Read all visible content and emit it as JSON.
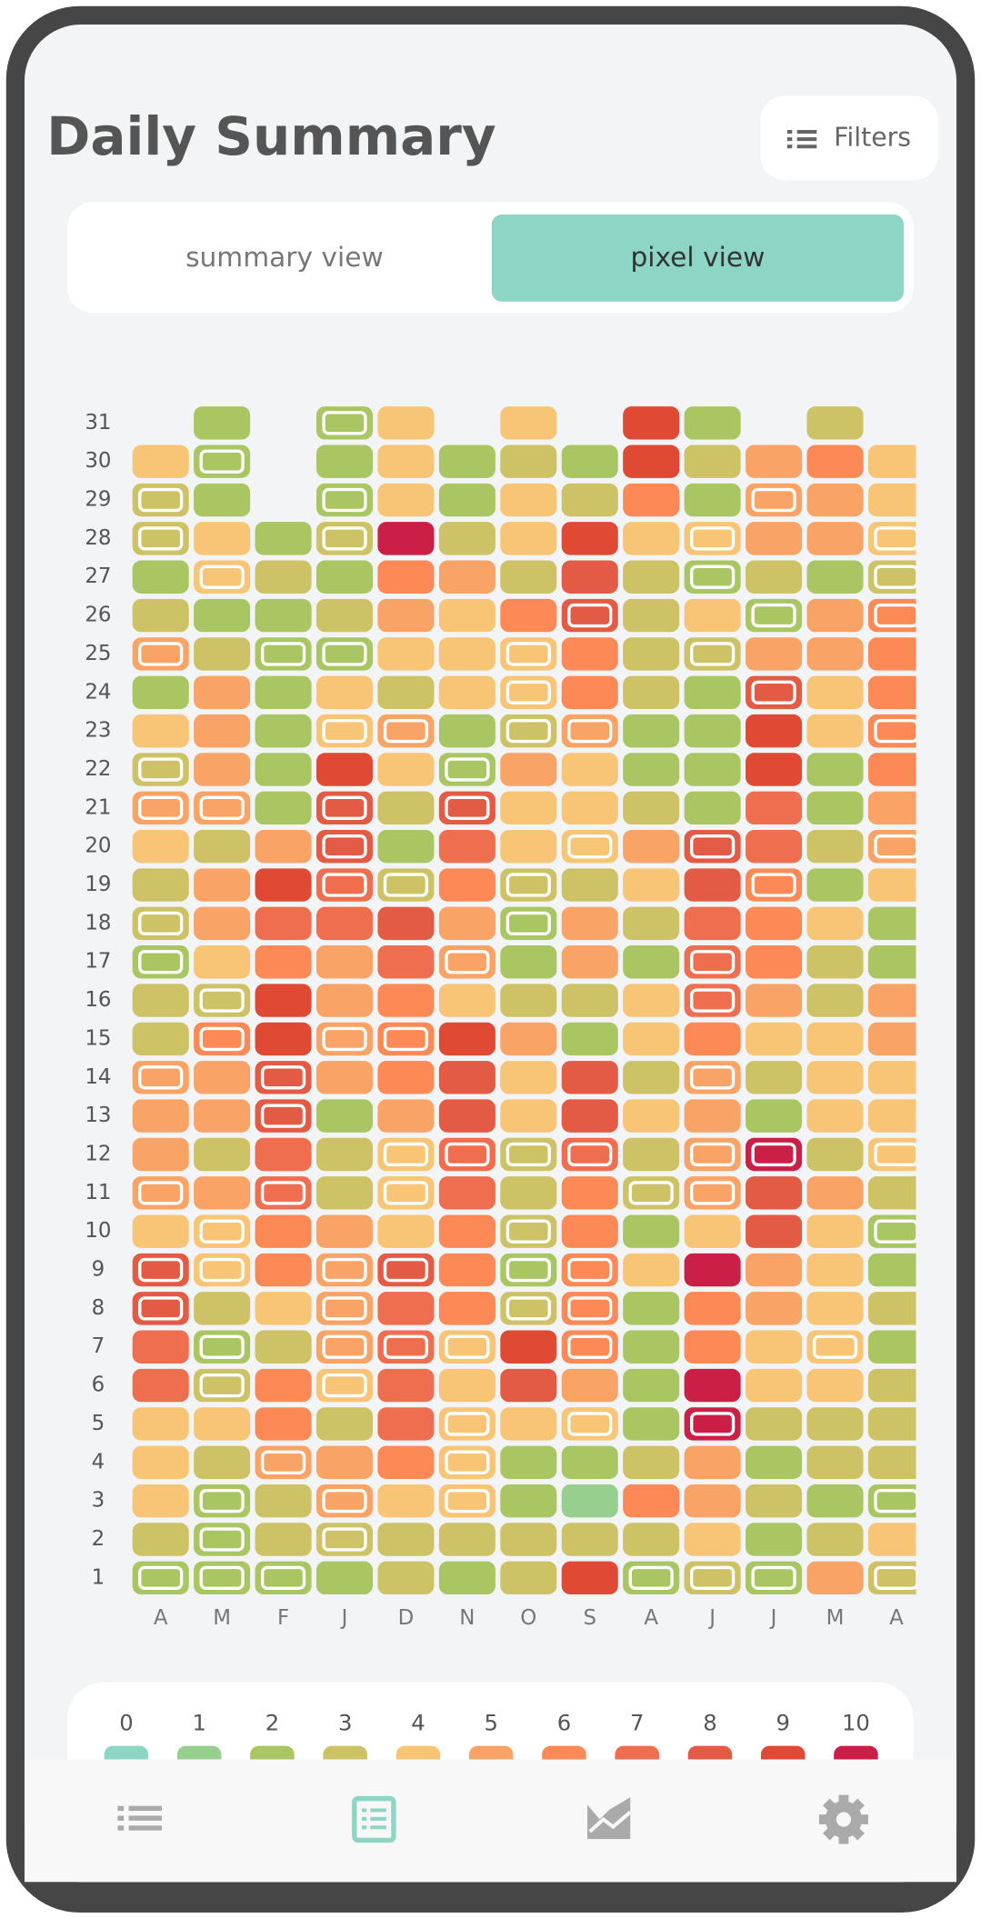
{
  "header": {
    "title": "Daily Summary",
    "filters": "Filters"
  },
  "tabs": [
    "summary view",
    "pixel view"
  ],
  "active_tab": 1,
  "pixel_grid": {
    "months": [
      "A",
      "M",
      "F",
      "J",
      "D",
      "N",
      "O",
      "S",
      "A",
      "J",
      "J",
      "M",
      "A"
    ],
    "days": [
      31,
      30,
      29,
      28,
      27,
      26,
      25,
      24,
      23,
      22,
      21,
      20,
      19,
      18,
      17,
      16,
      15,
      14,
      13,
      12,
      11,
      10,
      9,
      8,
      7,
      6,
      5,
      4,
      3,
      2,
      1
    ],
    "values": [
      [
        null,
        2,
        null,
        2,
        4,
        null,
        4,
        null,
        9,
        2,
        null,
        3,
        null
      ],
      [
        4,
        2,
        null,
        2,
        4,
        2,
        3,
        2,
        9,
        3,
        5,
        6,
        4
      ],
      [
        3,
        2,
        null,
        2,
        4,
        2,
        4,
        3,
        6,
        2,
        5,
        5,
        4
      ],
      [
        3,
        4,
        2,
        3,
        10,
        3,
        4,
        9,
        4,
        4,
        5,
        5,
        4
      ],
      [
        2,
        4,
        3,
        2,
        6,
        5,
        3,
        8,
        3,
        2,
        3,
        2,
        3
      ],
      [
        3,
        2,
        2,
        3,
        5,
        4,
        6,
        8,
        3,
        4,
        2,
        5,
        6
      ],
      [
        5,
        3,
        2,
        2,
        4,
        4,
        4,
        6,
        3,
        3,
        5,
        5,
        6
      ],
      [
        2,
        5,
        2,
        4,
        3,
        4,
        4,
        6,
        3,
        2,
        8,
        4,
        6
      ],
      [
        4,
        5,
        2,
        4,
        5,
        2,
        3,
        5,
        2,
        2,
        9,
        4,
        6
      ],
      [
        3,
        5,
        2,
        9,
        4,
        2,
        5,
        4,
        2,
        2,
        9,
        2,
        6
      ],
      [
        5,
        5,
        2,
        8,
        3,
        8,
        4,
        4,
        3,
        2,
        7,
        2,
        5
      ],
      [
        4,
        3,
        5,
        8,
        2,
        7,
        4,
        4,
        5,
        8,
        7,
        3,
        5
      ],
      [
        3,
        5,
        9,
        7,
        3,
        6,
        3,
        3,
        4,
        8,
        6,
        2,
        4
      ],
      [
        3,
        5,
        7,
        7,
        8,
        5,
        2,
        5,
        3,
        7,
        6,
        4,
        2
      ],
      [
        2,
        4,
        6,
        5,
        7,
        5,
        2,
        5,
        2,
        7,
        6,
        3,
        2
      ],
      [
        3,
        3,
        9,
        5,
        6,
        4,
        3,
        3,
        4,
        7,
        5,
        3,
        5
      ],
      [
        3,
        6,
        9,
        5,
        6,
        9,
        5,
        2,
        4,
        6,
        4,
        4,
        5
      ],
      [
        5,
        5,
        8,
        5,
        6,
        8,
        4,
        8,
        3,
        5,
        3,
        4,
        4
      ],
      [
        5,
        5,
        8,
        2,
        5,
        8,
        4,
        8,
        4,
        5,
        2,
        4,
        4
      ],
      [
        5,
        3,
        7,
        3,
        4,
        7,
        3,
        7,
        3,
        5,
        10,
        3,
        4
      ],
      [
        5,
        5,
        7,
        3,
        4,
        7,
        3,
        6,
        3,
        5,
        8,
        5,
        3
      ],
      [
        4,
        4,
        6,
        5,
        4,
        6,
        3,
        6,
        2,
        4,
        8,
        4,
        2
      ],
      [
        8,
        4,
        6,
        5,
        8,
        6,
        2,
        6,
        4,
        10,
        5,
        4,
        2
      ],
      [
        8,
        3,
        4,
        5,
        7,
        6,
        3,
        6,
        2,
        6,
        5,
        4,
        3
      ],
      [
        7,
        2,
        3,
        5,
        7,
        4,
        9,
        6,
        2,
        6,
        4,
        4,
        2
      ],
      [
        7,
        3,
        6,
        4,
        7,
        4,
        8,
        5,
        2,
        10,
        4,
        4,
        3
      ],
      [
        4,
        4,
        6,
        3,
        7,
        4,
        4,
        4,
        2,
        10,
        3,
        3,
        3
      ],
      [
        4,
        3,
        5,
        5,
        6,
        4,
        2,
        2,
        3,
        5,
        2,
        3,
        3
      ],
      [
        4,
        2,
        3,
        5,
        4,
        4,
        2,
        1,
        6,
        5,
        3,
        2,
        2
      ],
      [
        3,
        2,
        3,
        3,
        3,
        3,
        3,
        3,
        3,
        4,
        2,
        3,
        4
      ],
      [
        2,
        2,
        2,
        2,
        3,
        2,
        3,
        9,
        2,
        3,
        2,
        5,
        3
      ]
    ],
    "ringed": [
      [
        false,
        false,
        false,
        true,
        false,
        false,
        false,
        false,
        false,
        false,
        false,
        false,
        false
      ],
      [
        false,
        true,
        false,
        false,
        false,
        false,
        false,
        false,
        false,
        false,
        false,
        false,
        false
      ],
      [
        true,
        false,
        false,
        true,
        false,
        false,
        false,
        false,
        false,
        false,
        true,
        false,
        false
      ],
      [
        true,
        false,
        false,
        true,
        false,
        false,
        false,
        false,
        false,
        true,
        false,
        false,
        true
      ],
      [
        false,
        true,
        false,
        false,
        false,
        false,
        false,
        false,
        false,
        true,
        false,
        false,
        true
      ],
      [
        false,
        false,
        false,
        false,
        false,
        false,
        false,
        true,
        false,
        false,
        true,
        false,
        true
      ],
      [
        true,
        false,
        true,
        true,
        false,
        false,
        true,
        false,
        false,
        true,
        false,
        false,
        false
      ],
      [
        false,
        false,
        false,
        false,
        false,
        false,
        true,
        false,
        false,
        false,
        true,
        false,
        false
      ],
      [
        false,
        false,
        false,
        true,
        true,
        false,
        true,
        true,
        false,
        false,
        false,
        false,
        true
      ],
      [
        true,
        false,
        false,
        false,
        false,
        true,
        false,
        false,
        false,
        false,
        false,
        false,
        false
      ],
      [
        true,
        true,
        false,
        true,
        false,
        true,
        false,
        false,
        false,
        false,
        false,
        false,
        false
      ],
      [
        false,
        false,
        false,
        true,
        false,
        false,
        false,
        true,
        false,
        true,
        false,
        false,
        true
      ],
      [
        false,
        false,
        false,
        true,
        true,
        false,
        true,
        false,
        false,
        false,
        true,
        false,
        false
      ],
      [
        true,
        false,
        false,
        false,
        false,
        false,
        true,
        false,
        false,
        false,
        false,
        false,
        false
      ],
      [
        true,
        false,
        false,
        false,
        false,
        true,
        false,
        false,
        false,
        true,
        false,
        false,
        false
      ],
      [
        false,
        true,
        false,
        false,
        false,
        false,
        false,
        false,
        false,
        true,
        false,
        false,
        false
      ],
      [
        false,
        true,
        false,
        true,
        true,
        false,
        false,
        false,
        false,
        false,
        false,
        false,
        false
      ],
      [
        true,
        false,
        true,
        false,
        false,
        false,
        false,
        false,
        false,
        true,
        false,
        false,
        false
      ],
      [
        false,
        false,
        true,
        false,
        false,
        false,
        false,
        false,
        false,
        false,
        false,
        false,
        false
      ],
      [
        false,
        false,
        false,
        false,
        true,
        true,
        true,
        true,
        false,
        true,
        true,
        false,
        true
      ],
      [
        true,
        false,
        true,
        false,
        true,
        false,
        false,
        false,
        true,
        true,
        false,
        false,
        false
      ],
      [
        false,
        true,
        false,
        false,
        false,
        false,
        true,
        false,
        false,
        false,
        false,
        false,
        true
      ],
      [
        true,
        true,
        false,
        true,
        true,
        false,
        true,
        true,
        false,
        false,
        false,
        false,
        false
      ],
      [
        true,
        false,
        false,
        true,
        false,
        false,
        true,
        true,
        false,
        false,
        false,
        false,
        false
      ],
      [
        false,
        true,
        false,
        true,
        true,
        true,
        false,
        true,
        false,
        false,
        false,
        true,
        false
      ],
      [
        false,
        true,
        false,
        true,
        false,
        false,
        false,
        false,
        false,
        false,
        false,
        false,
        false
      ],
      [
        false,
        false,
        false,
        false,
        false,
        true,
        false,
        true,
        false,
        true,
        false,
        false,
        false
      ],
      [
        false,
        false,
        true,
        false,
        false,
        true,
        false,
        false,
        false,
        false,
        false,
        false,
        false
      ],
      [
        false,
        true,
        false,
        true,
        false,
        true,
        false,
        false,
        false,
        false,
        false,
        false,
        true
      ],
      [
        false,
        true,
        false,
        true,
        false,
        false,
        false,
        false,
        false,
        false,
        false,
        false,
        false
      ],
      [
        true,
        true,
        true,
        false,
        false,
        false,
        false,
        false,
        true,
        true,
        true,
        false,
        true
      ]
    ]
  },
  "legend": {
    "levels": [
      0,
      1,
      2,
      3,
      4,
      5,
      6,
      7,
      8,
      9,
      10
    ],
    "colors": [
      "#8dd5c5",
      "#97cf8f",
      "#a9c662",
      "#cdc266",
      "#f8c476",
      "#f9a466",
      "#fd8957",
      "#f06e50",
      "#e35b45",
      "#e04a35",
      "#cc1f48"
    ]
  }
}
